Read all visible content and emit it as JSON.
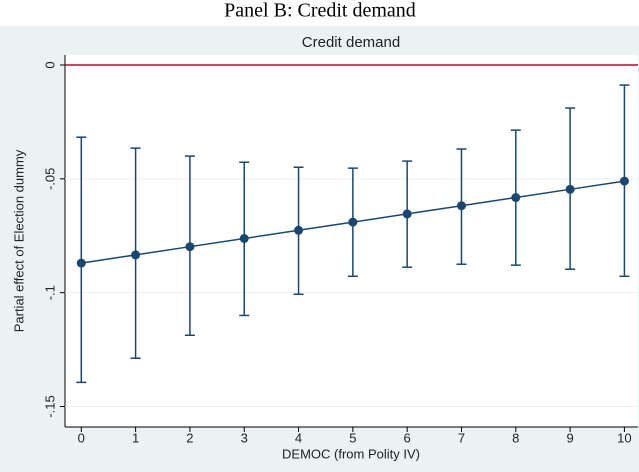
{
  "page_title": "Panel B: Credit demand",
  "chart_data": {
    "type": "errorbar",
    "title": "Credit demand",
    "x_label": "DEMOC (from Polity IV)",
    "y_label": "Partial effect of Election dummy",
    "x": [
      0,
      1,
      2,
      3,
      4,
      5,
      6,
      7,
      8,
      9,
      10
    ],
    "values": [
      -0.087,
      -0.0834,
      -0.0798,
      -0.0762,
      -0.0726,
      -0.069,
      -0.0654,
      -0.0618,
      -0.0582,
      -0.0546,
      -0.051
    ],
    "ci_lower": [
      -0.1394,
      -0.1288,
      -0.1187,
      -0.11,
      -0.1007,
      -0.0928,
      -0.0888,
      -0.0875,
      -0.0879,
      -0.0897,
      -0.0928
    ],
    "ci_upper": [
      -0.0317,
      -0.0365,
      -0.04,
      -0.0427,
      -0.0449,
      -0.0453,
      -0.0422,
      -0.0369,
      -0.0286,
      -0.0189,
      -0.0088
    ],
    "color": "#1a476f",
    "reference_line": 0,
    "reference_color": "#c10534",
    "xlim": [
      -0.3,
      10.25
    ],
    "xticks": [
      0,
      1,
      2,
      3,
      4,
      5,
      6,
      7,
      8,
      9,
      10
    ],
    "ylim": [
      -0.159,
      0.0044
    ],
    "yticks": [
      0,
      {
        "value": -0.05,
        "label": "-.05"
      },
      {
        "value": -0.1,
        "label": "-.1"
      },
      {
        "value": -0.15,
        "label": "-.15"
      }
    ],
    "grid": true
  }
}
